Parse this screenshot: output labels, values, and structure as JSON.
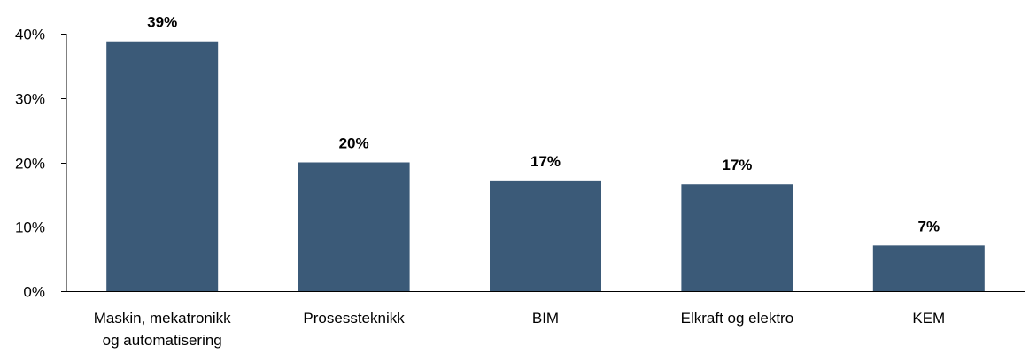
{
  "chart_data": {
    "type": "bar",
    "categories": [
      [
        "Maskin, mekatronikk",
        "og automatisering"
      ],
      [
        "Prosessteknikk"
      ],
      [
        "BIM"
      ],
      [
        "Elkraft og elektro"
      ],
      [
        "KEM"
      ]
    ],
    "values": [
      38.8,
      20.0,
      17.2,
      16.6,
      7.1
    ],
    "data_labels": [
      "39%",
      "20%",
      "17%",
      "17%",
      "7%"
    ],
    "y_ticks": [
      0,
      10,
      20,
      30,
      40
    ],
    "y_tick_labels": [
      "0%",
      "10%",
      "20%",
      "30%",
      "40%"
    ],
    "ylim": [
      0,
      40
    ],
    "bar_color": "#3b5a78",
    "axis_color": "#000000",
    "grid": false,
    "legend": false
  }
}
